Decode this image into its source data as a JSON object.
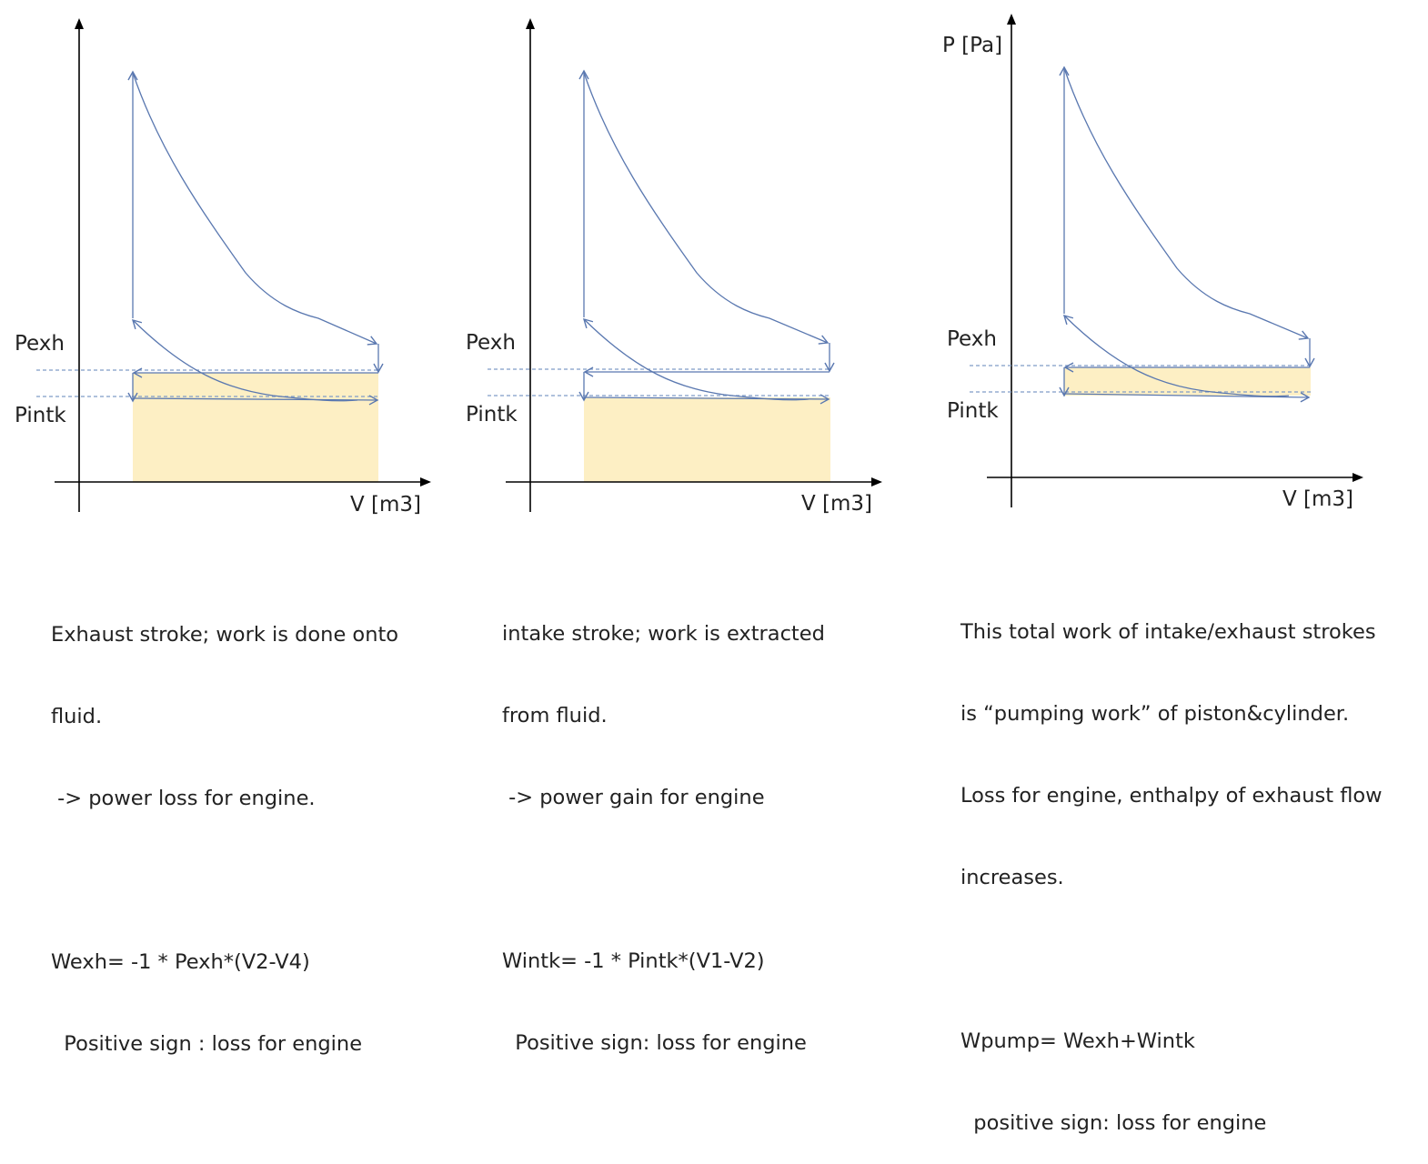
{
  "colors": {
    "axis": "#000000",
    "curve": "#5a78b0",
    "dashed": "#7f9cc6",
    "fill": "#fdefc4",
    "text": "#222222"
  },
  "panels": [
    {
      "id": "exhaust",
      "labels": {
        "p_axis": "",
        "v_axis": "V [m3]",
        "pexh": "Pexh",
        "pintk": "Pintk"
      },
      "shading": "full-under-pexh",
      "caption": [
        "Exhaust stroke; work is done onto",
        "fluid.",
        " -> power loss for engine.",
        "",
        "Wexh= -1 * Pexh*(V2-V4)",
        "  Positive sign : loss for engine"
      ]
    },
    {
      "id": "intake",
      "labels": {
        "p_axis": "",
        "v_axis": "V [m3]",
        "pexh": "Pexh",
        "pintk": "Pintk"
      },
      "shading": "full-under-pintk",
      "caption": [
        "intake stroke; work is extracted",
        "from fluid.",
        " -> power gain for engine",
        "",
        "Wintk= -1 * Pintk*(V1-V2)",
        "  Positive sign: loss for engine"
      ]
    },
    {
      "id": "pumping",
      "labels": {
        "p_axis": "P [Pa]",
        "v_axis": "V [m3]",
        "pexh": "Pexh",
        "pintk": "Pintk"
      },
      "shading": "band-between",
      "caption": [
        "This total work of intake/exhaust strokes",
        "is “pumping work” of piston&cylinder.",
        "Loss for engine, enthalpy of exhaust flow",
        "increases.",
        "",
        "Wpump= Wexh+Wintk",
        "  positive sign: loss for engine"
      ]
    }
  ]
}
